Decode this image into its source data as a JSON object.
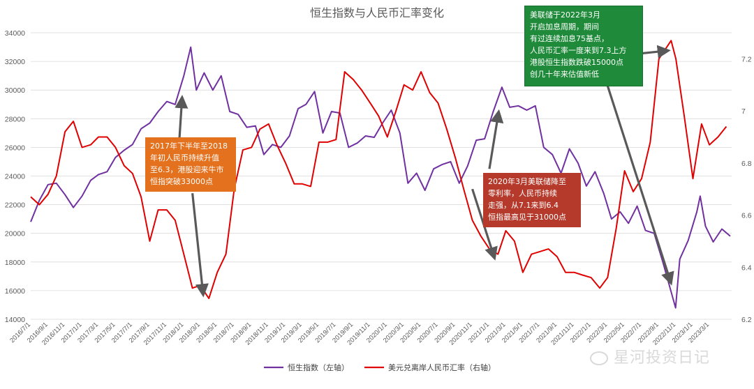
{
  "chart_data": {
    "type": "line",
    "title": "恒生指数与人民币汇率变化",
    "x_tick_labels": [
      "2016/7/1",
      "2016/9/1",
      "2016/11/1",
      "2017/1/1",
      "2017/3/1",
      "2017/5/1",
      "2017/7/1",
      "2017/9/1",
      "2017/11/1",
      "2018/1/1",
      "2018/3/1",
      "2018/5/1",
      "2018/7/1",
      "2018/9/1",
      "2018/11/1",
      "2019/1/1",
      "2019/3/1",
      "2019/5/1",
      "2019/7/1",
      "2019/9/1",
      "2019/11/1",
      "2020/1/1",
      "2020/3/1",
      "2020/5/1",
      "2020/7/1",
      "2020/9/1",
      "2020/11/1",
      "2021/1/1",
      "2021/3/1",
      "2021/5/1",
      "2021/7/1",
      "2021/9/1",
      "2021/11/1",
      "2022/1/1",
      "2022/3/1",
      "2022/5/1",
      "2022/7/1",
      "2022/9/1",
      "2022/11/1",
      "2023/1/1",
      "2023/3/1"
    ],
    "y_left": {
      "min": 14000,
      "max": 34000,
      "ticks": [
        "14000",
        "16000",
        "18000",
        "20000",
        "22000",
        "24000",
        "26000",
        "28000",
        "30000",
        "32000",
        "34000"
      ]
    },
    "y_right": {
      "min": 6.2,
      "max": 7.3,
      "ticks": [
        "6.2",
        "6.4",
        "6.6",
        "6.8",
        "7",
        "7.2"
      ]
    },
    "grid": "horizontal",
    "legend_position": "bottom",
    "series": [
      {
        "name": "恒生指数（左轴）",
        "axis": "left",
        "color": "#7030a0",
        "points": [
          [
            "2016/7/1",
            20800
          ],
          [
            "2016/8/1",
            22300
          ],
          [
            "2016/9/1",
            23400
          ],
          [
            "2016/10/1",
            23500
          ],
          [
            "2016/11/1",
            22700
          ],
          [
            "2016/12/1",
            21800
          ],
          [
            "2017/1/1",
            22600
          ],
          [
            "2017/2/1",
            23700
          ],
          [
            "2017/3/1",
            24100
          ],
          [
            "2017/4/1",
            24300
          ],
          [
            "2017/5/1",
            25300
          ],
          [
            "2017/6/1",
            25800
          ],
          [
            "2017/7/1",
            26200
          ],
          [
            "2017/8/1",
            27300
          ],
          [
            "2017/9/1",
            27700
          ],
          [
            "2017/10/1",
            28500
          ],
          [
            "2017/11/1",
            29200
          ],
          [
            "2017/12/1",
            29000
          ],
          [
            "2018/1/1",
            31000
          ],
          [
            "2018/1/26",
            33000
          ],
          [
            "2018/2/15",
            30000
          ],
          [
            "2018/3/15",
            31200
          ],
          [
            "2018/4/15",
            30000
          ],
          [
            "2018/5/15",
            31000
          ],
          [
            "2018/6/15",
            28500
          ],
          [
            "2018/7/15",
            28300
          ],
          [
            "2018/8/15",
            27400
          ],
          [
            "2018/9/15",
            27500
          ],
          [
            "2018/10/15",
            25500
          ],
          [
            "2018/11/15",
            26200
          ],
          [
            "2018/12/15",
            26000
          ],
          [
            "2019/1/15",
            26800
          ],
          [
            "2019/2/15",
            28700
          ],
          [
            "2019/3/15",
            29000
          ],
          [
            "2019/4/15",
            29900
          ],
          [
            "2019/5/15",
            27000
          ],
          [
            "2019/6/15",
            28500
          ],
          [
            "2019/7/15",
            28400
          ],
          [
            "2019/8/15",
            26000
          ],
          [
            "2019/9/15",
            26300
          ],
          [
            "2019/10/15",
            26800
          ],
          [
            "2019/11/15",
            26700
          ],
          [
            "2019/12/15",
            27700
          ],
          [
            "2020/1/15",
            28600
          ],
          [
            "2020/2/15",
            27000
          ],
          [
            "2020/3/15",
            23500
          ],
          [
            "2020/4/15",
            24200
          ],
          [
            "2020/5/15",
            23000
          ],
          [
            "2020/6/15",
            24500
          ],
          [
            "2020/7/15",
            24800
          ],
          [
            "2020/8/15",
            25000
          ],
          [
            "2020/9/15",
            23500
          ],
          [
            "2020/10/15",
            24700
          ],
          [
            "2020/11/15",
            26500
          ],
          [
            "2020/12/15",
            26600
          ],
          [
            "2021/1/15",
            28500
          ],
          [
            "2021/2/15",
            30200
          ],
          [
            "2021/3/15",
            28800
          ],
          [
            "2021/4/15",
            28900
          ],
          [
            "2021/5/15",
            28600
          ],
          [
            "2021/6/15",
            28900
          ],
          [
            "2021/7/15",
            26000
          ],
          [
            "2021/8/15",
            25500
          ],
          [
            "2021/9/15",
            24200
          ],
          [
            "2021/10/15",
            25900
          ],
          [
            "2021/11/15",
            24900
          ],
          [
            "2021/12/15",
            23300
          ],
          [
            "2022/1/15",
            24300
          ],
          [
            "2022/2/15",
            22800
          ],
          [
            "2022/3/15",
            21000
          ],
          [
            "2022/4/15",
            21500
          ],
          [
            "2022/5/15",
            20700
          ],
          [
            "2022/6/15",
            21900
          ],
          [
            "2022/7/15",
            20200
          ],
          [
            "2022/8/15",
            20000
          ],
          [
            "2022/9/15",
            18000
          ],
          [
            "2022/10/31",
            14800
          ],
          [
            "2022/11/15",
            18200
          ],
          [
            "2022/12/15",
            19500
          ],
          [
            "2023/1/15",
            21500
          ],
          [
            "2023/1/27",
            22600
          ],
          [
            "2023/2/15",
            20500
          ],
          [
            "2023/3/15",
            19400
          ],
          [
            "2023/4/15",
            20300
          ],
          [
            "2023/5/15",
            19800
          ]
        ]
      },
      {
        "name": "美元兑离岸人民币汇率（右轴）",
        "axis": "right",
        "color": "#e00000",
        "points": [
          [
            "2016/7/1",
            6.67
          ],
          [
            "2016/8/1",
            6.64
          ],
          [
            "2016/9/1",
            6.68
          ],
          [
            "2016/10/1",
            6.75
          ],
          [
            "2016/11/1",
            6.92
          ],
          [
            "2016/12/1",
            6.96
          ],
          [
            "2017/1/1",
            6.86
          ],
          [
            "2017/2/1",
            6.87
          ],
          [
            "2017/3/1",
            6.9
          ],
          [
            "2017/4/1",
            6.9
          ],
          [
            "2017/5/1",
            6.86
          ],
          [
            "2017/6/1",
            6.79
          ],
          [
            "2017/7/1",
            6.76
          ],
          [
            "2017/8/1",
            6.67
          ],
          [
            "2017/9/1",
            6.5
          ],
          [
            "2017/10/1",
            6.62
          ],
          [
            "2017/11/1",
            6.62
          ],
          [
            "2017/12/1",
            6.58
          ],
          [
            "2018/1/1",
            6.45
          ],
          [
            "2018/2/1",
            6.32
          ],
          [
            "2018/3/1",
            6.33
          ],
          [
            "2018/4/1",
            6.28
          ],
          [
            "2018/5/1",
            6.38
          ],
          [
            "2018/6/1",
            6.45
          ],
          [
            "2018/7/1",
            6.7
          ],
          [
            "2018/8/1",
            6.85
          ],
          [
            "2018/9/1",
            6.86
          ],
          [
            "2018/10/1",
            6.93
          ],
          [
            "2018/11/1",
            6.95
          ],
          [
            "2018/12/1",
            6.87
          ],
          [
            "2019/1/1",
            6.8
          ],
          [
            "2019/2/1",
            6.72
          ],
          [
            "2019/3/1",
            6.72
          ],
          [
            "2019/4/1",
            6.71
          ],
          [
            "2019/5/1",
            6.88
          ],
          [
            "2019/6/1",
            6.88
          ],
          [
            "2019/7/1",
            6.89
          ],
          [
            "2019/8/1",
            7.15
          ],
          [
            "2019/9/1",
            7.12
          ],
          [
            "2019/10/1",
            7.08
          ],
          [
            "2019/11/1",
            7.03
          ],
          [
            "2019/12/1",
            6.98
          ],
          [
            "2020/1/1",
            6.9
          ],
          [
            "2020/2/1",
            7.0
          ],
          [
            "2020/3/1",
            7.1
          ],
          [
            "2020/4/1",
            7.08
          ],
          [
            "2020/5/1",
            7.15
          ],
          [
            "2020/6/1",
            7.07
          ],
          [
            "2020/7/1",
            7.03
          ],
          [
            "2020/8/1",
            6.93
          ],
          [
            "2020/9/1",
            6.82
          ],
          [
            "2020/10/1",
            6.7
          ],
          [
            "2020/11/1",
            6.58
          ],
          [
            "2020/12/1",
            6.52
          ],
          [
            "2021/1/1",
            6.47
          ],
          [
            "2021/2/1",
            6.45
          ],
          [
            "2021/3/1",
            6.54
          ],
          [
            "2021/4/1",
            6.5
          ],
          [
            "2021/5/1",
            6.38
          ],
          [
            "2021/6/1",
            6.45
          ],
          [
            "2021/7/1",
            6.46
          ],
          [
            "2021/8/1",
            6.47
          ],
          [
            "2021/9/1",
            6.44
          ],
          [
            "2021/10/1",
            6.38
          ],
          [
            "2021/11/1",
            6.38
          ],
          [
            "2021/12/1",
            6.37
          ],
          [
            "2022/1/1",
            6.36
          ],
          [
            "2022/2/1",
            6.32
          ],
          [
            "2022/3/1",
            6.36
          ],
          [
            "2022/4/1",
            6.55
          ],
          [
            "2022/5/1",
            6.77
          ],
          [
            "2022/6/1",
            6.69
          ],
          [
            "2022/7/1",
            6.74
          ],
          [
            "2022/8/1",
            6.88
          ],
          [
            "2022/9/1",
            7.2
          ],
          [
            "2022/10/15",
            7.27
          ],
          [
            "2022/11/1",
            7.2
          ],
          [
            "2022/12/1",
            6.98
          ],
          [
            "2023/1/1",
            6.74
          ],
          [
            "2023/2/1",
            6.95
          ],
          [
            "2023/3/1",
            6.87
          ],
          [
            "2023/4/1",
            6.9
          ],
          [
            "2023/5/1",
            6.94
          ]
        ]
      }
    ],
    "annotations": [
      {
        "text": "2017年下半年至2018\n年初人民币持续升值\n至6.3，港股迎来牛市\n恒指突破33000点",
        "color": "#e4711d"
      },
      {
        "text": "2020年3月美联储降至\n零利率，人民币持续\n走强，从7.1来到6.4\n恒指最高见于31000点",
        "color": "#b53a2b"
      },
      {
        "text": "美联储于2022年3月\n开启加息周期，期间\n有过连续加息75基点，\n人民币汇率一度来到7.3上方\n港股恒生指数跌破15000点\n创几十年来估值新低",
        "color": "#1f8a3a"
      }
    ]
  },
  "watermark": "星河投资日记"
}
